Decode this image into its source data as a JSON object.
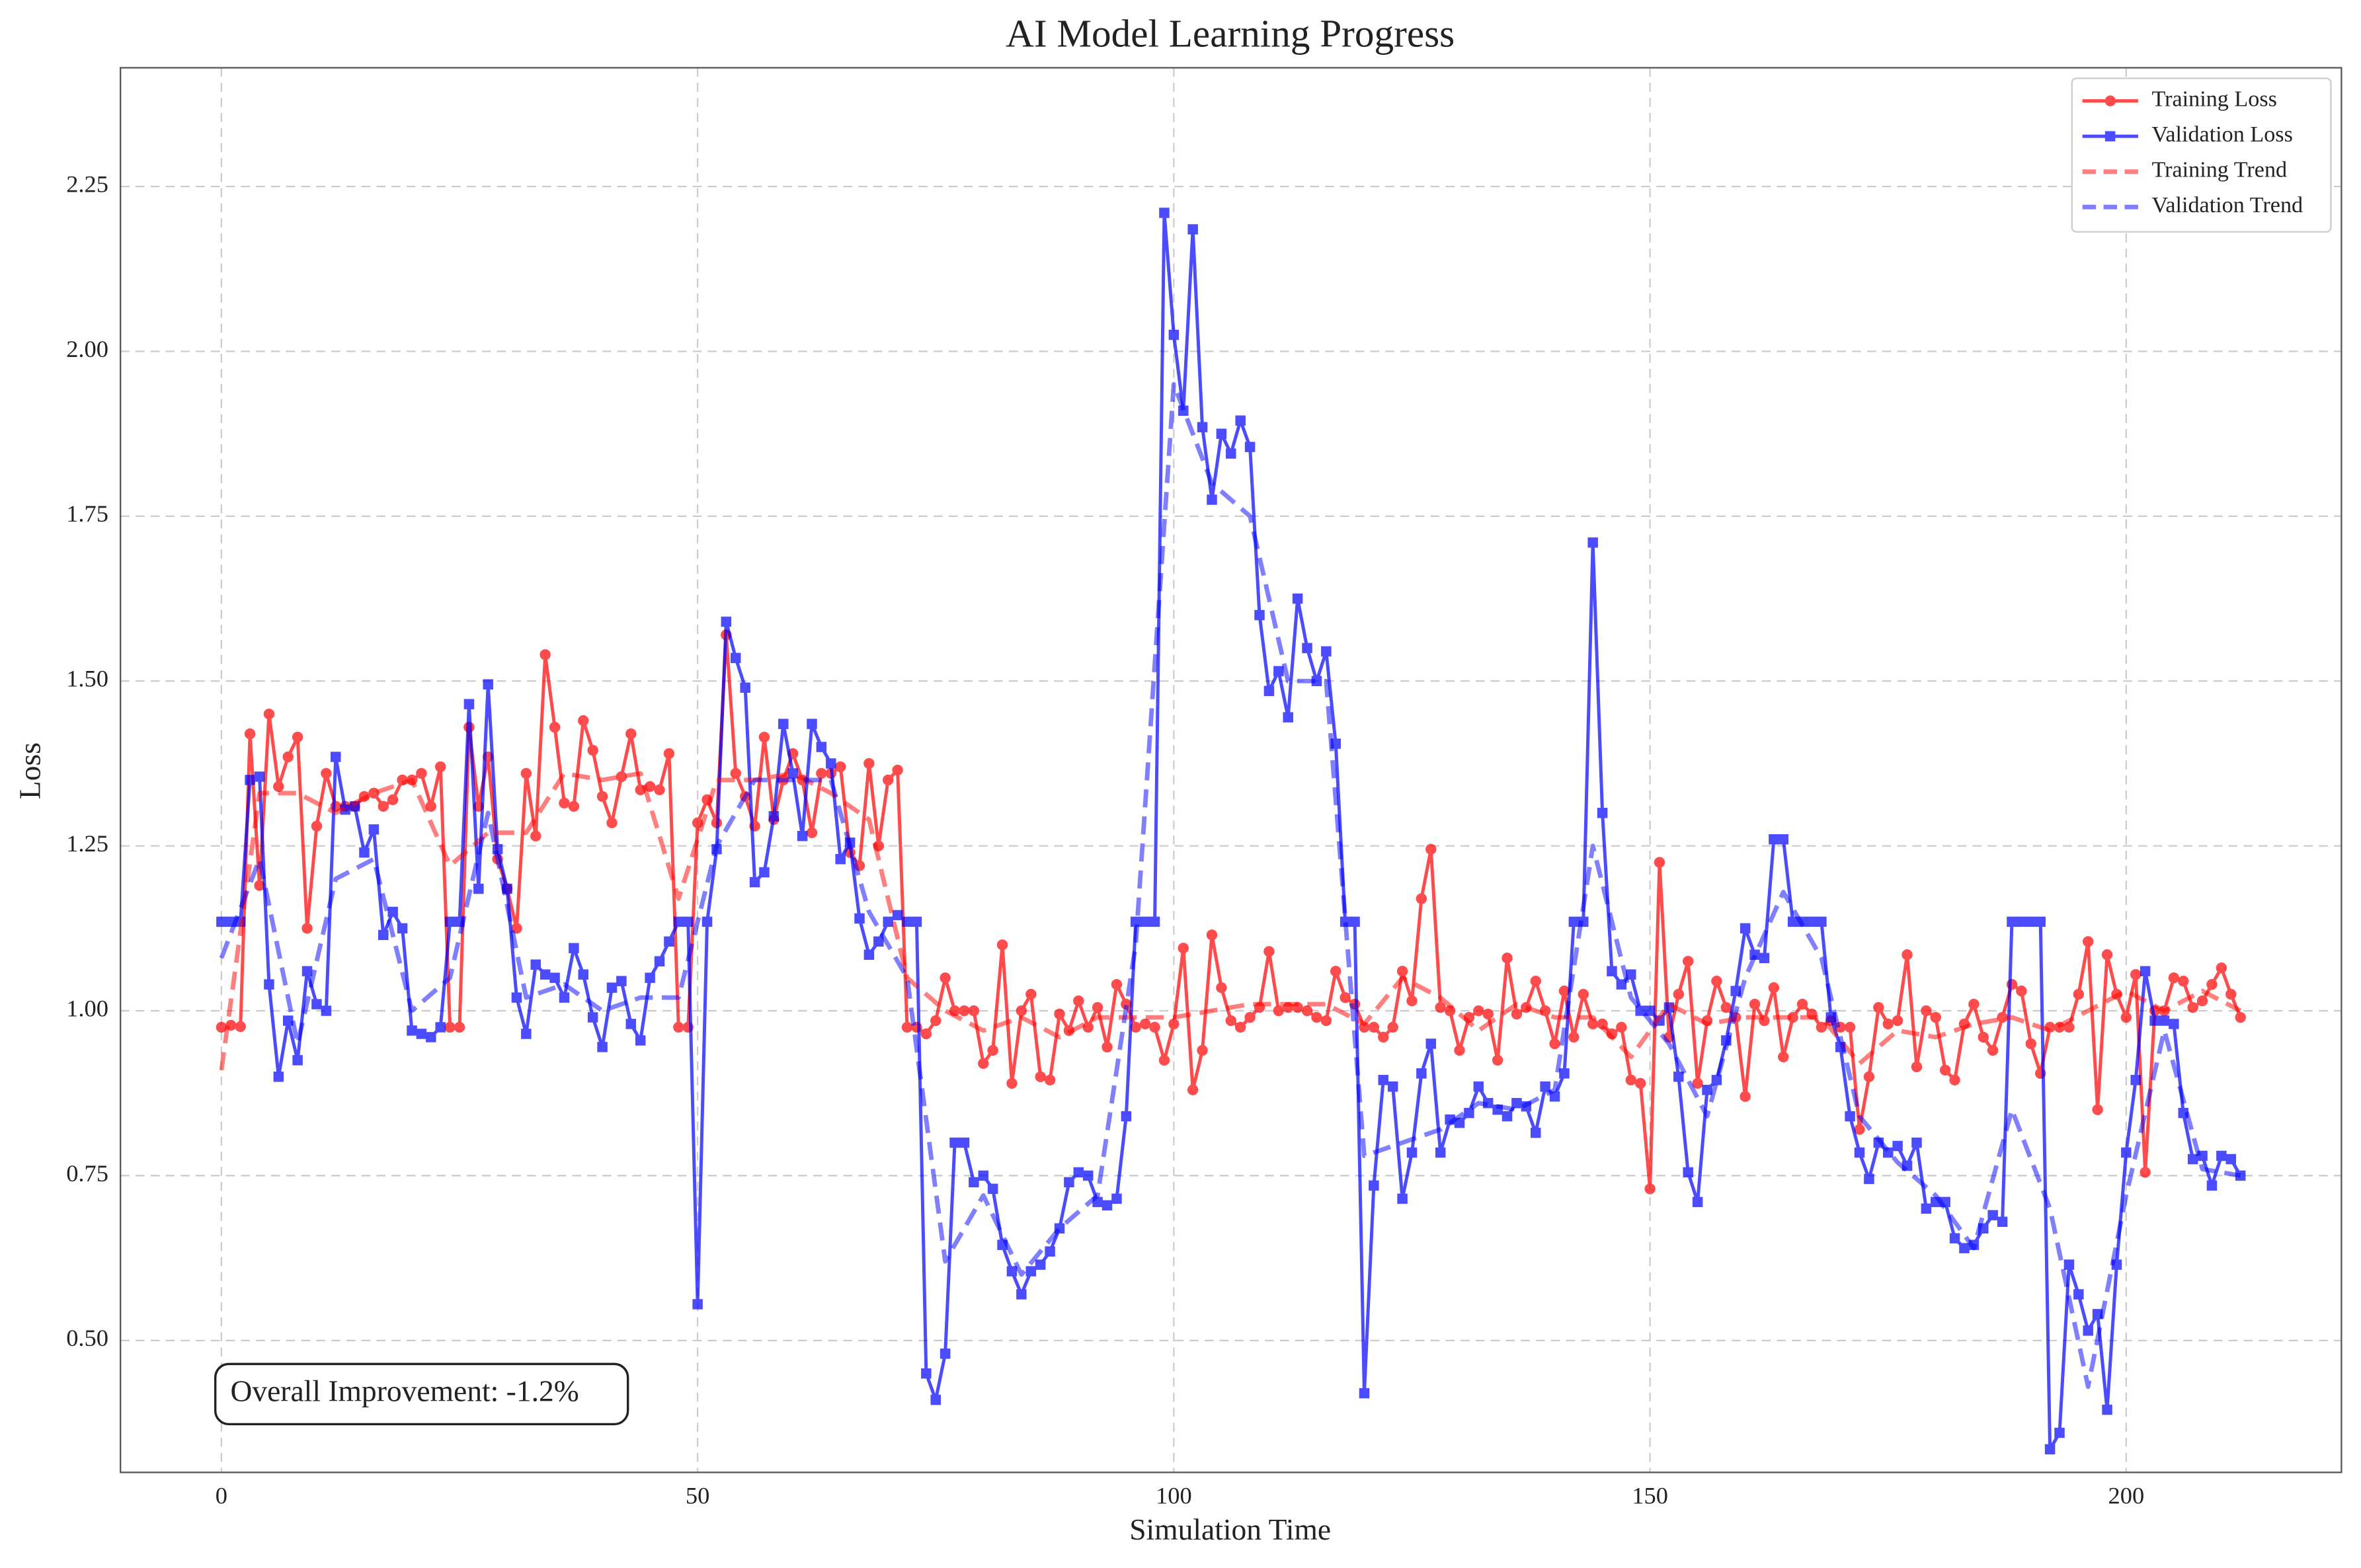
{
  "chart_data": {
    "type": "line",
    "title": "AI Model Learning Progress",
    "xlabel": "Simulation Time",
    "ylabel": "Loss",
    "annotation": "Overall Improvement: -1.2%",
    "xlim": [
      -10.6,
      222.6
    ],
    "ylim": [
      0.3,
      2.43
    ],
    "xticks": [
      0,
      50,
      100,
      150,
      200
    ],
    "yticks": [
      {
        "value": 0.5,
        "label": "0.50"
      },
      0.75,
      {
        "value": 1.0,
        "label": "1.00"
      },
      1.25,
      {
        "value": 1.5,
        "label": "1.50"
      },
      1.75,
      {
        "value": 2.0,
        "label": "2.00"
      },
      2.25
    ],
    "grid": true,
    "legend": "upper right",
    "x": [
      0,
      1,
      2,
      3,
      4,
      5,
      6,
      7,
      8,
      9,
      10,
      11,
      12,
      13,
      14,
      15,
      16,
      17,
      18,
      19,
      20,
      21,
      22,
      23,
      24,
      25,
      26,
      27,
      28,
      29,
      30,
      31,
      32,
      33,
      34,
      35,
      36,
      37,
      38,
      39,
      40,
      41,
      42,
      43,
      44,
      45,
      46,
      47,
      48,
      49,
      50,
      51,
      52,
      53,
      54,
      55,
      56,
      57,
      58,
      59,
      60,
      61,
      62,
      63,
      64,
      65,
      66,
      67,
      68,
      69,
      70,
      71,
      72,
      73,
      74,
      75,
      76,
      77,
      78,
      79,
      80,
      81,
      82,
      83,
      84,
      85,
      86,
      87,
      88,
      89,
      90,
      91,
      92,
      93,
      94,
      95,
      96,
      97,
      98,
      99,
      100,
      101,
      102,
      103,
      104,
      105,
      106,
      107,
      108,
      109,
      110,
      111,
      112,
      113,
      114,
      115,
      116,
      117,
      118,
      119,
      120,
      121,
      122,
      123,
      124,
      125,
      126,
      127,
      128,
      129,
      130,
      131,
      132,
      133,
      134,
      135,
      136,
      137,
      138,
      139,
      140,
      141,
      142,
      143,
      144,
      145,
      146,
      147,
      148,
      149,
      150,
      151,
      152,
      153,
      154,
      155,
      156,
      157,
      158,
      159,
      160,
      161,
      162,
      163,
      164,
      165,
      166,
      167,
      168,
      169,
      170,
      171,
      172,
      173,
      174,
      175,
      176,
      177,
      178,
      179,
      180,
      181,
      182,
      183,
      184,
      185,
      186,
      187,
      188,
      189,
      190,
      191,
      192,
      193,
      194,
      195,
      196,
      197,
      198,
      199,
      200,
      201,
      202,
      203,
      204,
      205,
      206,
      207,
      208,
      209,
      210,
      211,
      212
    ],
    "series": [
      {
        "name": "Training Loss",
        "color": "#ff0000",
        "marker": "circle",
        "linestyle": "solid",
        "opacity": 0.7,
        "values": [
          0.975,
          0.978,
          0.976,
          1.42,
          1.19,
          1.45,
          1.34,
          1.385,
          1.415,
          1.125,
          1.28,
          1.36,
          1.31,
          1.31,
          1.31,
          1.325,
          1.33,
          1.31,
          1.32,
          1.35,
          1.35,
          1.36,
          1.31,
          1.37,
          0.975,
          0.975,
          1.43,
          1.31,
          1.385,
          1.23,
          1.185,
          1.125,
          1.36,
          1.265,
          1.54,
          1.43,
          1.315,
          1.31,
          1.44,
          1.395,
          1.325,
          1.285,
          1.355,
          1.42,
          1.335,
          1.34,
          1.335,
          1.39,
          0.975,
          0.975,
          1.285,
          1.32,
          1.285,
          1.57,
          1.36,
          1.325,
          1.28,
          1.415,
          1.29,
          1.35,
          1.39,
          1.35,
          1.27,
          1.36,
          1.36,
          1.37,
          1.24,
          1.22,
          1.375,
          1.25,
          1.35,
          1.365,
          0.975,
          0.975,
          0.965,
          0.985,
          1.05,
          1.0,
          1.0,
          1.0,
          0.92,
          0.94,
          1.1,
          0.89,
          1.0,
          1.025,
          0.9,
          0.895,
          0.995,
          0.97,
          1.015,
          0.975,
          1.005,
          0.945,
          1.04,
          1.01,
          0.975,
          0.98,
          0.975,
          0.925,
          0.98,
          1.095,
          0.88,
          0.94,
          1.115,
          1.035,
          0.985,
          0.975,
          0.99,
          1.005,
          1.09,
          1.0,
          1.005,
          1.005,
          1.0,
          0.99,
          0.985,
          1.06,
          1.02,
          1.01,
          0.975,
          0.975,
          0.96,
          0.975,
          1.06,
          1.015,
          1.17,
          1.245,
          1.005,
          1.0,
          0.94,
          0.99,
          1.0,
          0.995,
          0.925,
          1.08,
          0.995,
          1.005,
          1.045,
          1.0,
          0.95,
          1.03,
          0.96,
          1.025,
          0.98,
          0.98,
          0.965,
          0.975,
          0.895,
          0.89,
          0.73,
          1.225,
          0.96,
          1.025,
          1.075,
          0.89,
          0.985,
          1.045,
          1.005,
          0.99,
          0.87,
          1.01,
          0.985,
          1.035,
          0.93,
          0.99,
          1.01,
          0.995,
          0.975,
          0.985,
          0.975,
          0.975,
          0.82,
          0.9,
          1.005,
          0.98,
          0.985,
          1.085,
          0.915,
          1.0,
          0.99,
          0.91,
          0.895,
          0.98,
          1.01,
          0.96,
          0.94,
          0.99,
          1.04,
          1.03,
          0.95,
          0.905,
          0.975,
          0.975,
          0.975,
          1.025,
          1.105,
          0.85,
          1.085,
          1.025,
          0.99,
          1.055,
          0.755,
          1.0,
          1.0,
          1.05,
          1.045,
          1.005,
          1.015,
          1.04,
          1.065,
          1.025,
          0.99
        ]
      },
      {
        "name": "Validation Loss",
        "color": "#0000ff",
        "marker": "square",
        "linestyle": "solid",
        "opacity": 0.7,
        "values": [
          1.135,
          1.135,
          1.135,
          1.35,
          1.355,
          1.04,
          0.9,
          0.985,
          0.925,
          1.06,
          1.01,
          1.0,
          1.385,
          1.305,
          1.31,
          1.24,
          1.275,
          1.115,
          1.15,
          1.125,
          0.97,
          0.965,
          0.96,
          0.975,
          1.135,
          1.135,
          1.465,
          1.185,
          1.495,
          1.245,
          1.185,
          1.02,
          0.965,
          1.07,
          1.055,
          1.05,
          1.02,
          1.095,
          1.055,
          0.99,
          0.945,
          1.035,
          1.045,
          0.98,
          0.955,
          1.05,
          1.075,
          1.105,
          1.135,
          1.135,
          0.555,
          1.135,
          1.245,
          1.59,
          1.535,
          1.49,
          1.195,
          1.21,
          1.295,
          1.435,
          1.36,
          1.265,
          1.435,
          1.4,
          1.375,
          1.23,
          1.255,
          1.14,
          1.085,
          1.105,
          1.135,
          1.145,
          1.135,
          1.135,
          0.45,
          0.41,
          0.48,
          0.8,
          0.8,
          0.74,
          0.75,
          0.73,
          0.645,
          0.605,
          0.57,
          0.605,
          0.615,
          0.635,
          0.67,
          0.74,
          0.755,
          0.75,
          0.71,
          0.705,
          0.715,
          0.84,
          1.135,
          1.135,
          1.135,
          2.21,
          2.025,
          1.91,
          2.185,
          1.885,
          1.775,
          1.875,
          1.845,
          1.895,
          1.855,
          1.6,
          1.485,
          1.515,
          1.445,
          1.625,
          1.55,
          1.5,
          1.545,
          1.405,
          1.135,
          1.135,
          0.42,
          0.735,
          0.895,
          0.885,
          0.715,
          0.785,
          0.905,
          0.95,
          0.785,
          0.835,
          0.83,
          0.845,
          0.885,
          0.86,
          0.85,
          0.84,
          0.86,
          0.855,
          0.815,
          0.885,
          0.87,
          0.905,
          1.135,
          1.135,
          1.71,
          1.3,
          1.06,
          1.04,
          1.055,
          1.0,
          1.0,
          0.985,
          1.005,
          0.9,
          0.755,
          0.71,
          0.88,
          0.895,
          0.955,
          1.03,
          1.125,
          1.085,
          1.08,
          1.26,
          1.26,
          1.135,
          1.135,
          1.135,
          1.135,
          0.99,
          0.945,
          0.84,
          0.785,
          0.745,
          0.8,
          0.785,
          0.795,
          0.765,
          0.8,
          0.7,
          0.71,
          0.71,
          0.655,
          0.64,
          0.645,
          0.67,
          0.69,
          0.68,
          1.135,
          1.135,
          1.135,
          1.135,
          0.335,
          0.36,
          0.615,
          0.57,
          0.515,
          0.54,
          0.395,
          0.615,
          0.785,
          0.895,
          1.06,
          0.985,
          0.985,
          0.98,
          0.845,
          0.775,
          0.78,
          0.735,
          0.78,
          0.775,
          0.75
        ]
      },
      {
        "name": "Training Trend",
        "color": "#ff0000",
        "marker": "none",
        "linestyle": "dashed",
        "opacity": 0.5,
        "x": [
          0,
          4,
          8,
          12,
          16,
          20,
          24,
          28,
          32,
          36,
          40,
          44,
          48,
          52,
          56,
          60,
          64,
          68,
          72,
          76,
          80,
          84,
          88,
          92,
          96,
          100,
          104,
          108,
          112,
          116,
          120,
          124,
          128,
          132,
          136,
          140,
          144,
          148,
          152,
          156,
          160,
          164,
          168,
          172,
          176,
          180,
          184,
          188,
          192,
          196,
          200,
          204,
          208,
          212
        ],
        "values": [
          0.91,
          1.33,
          1.33,
          1.3,
          1.33,
          1.35,
          1.22,
          1.27,
          1.27,
          1.36,
          1.35,
          1.36,
          1.17,
          1.35,
          1.35,
          1.36,
          1.33,
          1.29,
          1.05,
          1.0,
          0.97,
          0.99,
          0.96,
          0.99,
          0.99,
          0.99,
          1.0,
          1.01,
          1.01,
          1.01,
          0.98,
          1.05,
          1.02,
          0.97,
          1.01,
          0.99,
          0.99,
          0.93,
          1.01,
          0.98,
          0.99,
          0.99,
          0.99,
          0.92,
          0.97,
          0.96,
          0.98,
          0.99,
          0.97,
          1.0,
          1.03,
          1.0,
          1.03,
          1.0
        ]
      },
      {
        "name": "Validation Trend",
        "color": "#0000ff",
        "marker": "none",
        "linestyle": "dashed",
        "opacity": 0.5,
        "x": [
          0,
          4,
          8,
          12,
          16,
          20,
          24,
          28,
          32,
          36,
          40,
          44,
          48,
          52,
          56,
          60,
          64,
          68,
          72,
          76,
          80,
          84,
          88,
          92,
          96,
          100,
          104,
          108,
          112,
          116,
          120,
          124,
          128,
          132,
          136,
          140,
          144,
          148,
          152,
          156,
          160,
          164,
          168,
          172,
          176,
          180,
          184,
          188,
          192,
          196,
          200,
          204,
          208,
          212
        ],
        "values": [
          1.08,
          1.23,
          0.95,
          1.2,
          1.23,
          1.0,
          1.05,
          1.3,
          1.02,
          1.04,
          1.0,
          1.02,
          1.02,
          1.25,
          1.35,
          1.35,
          1.35,
          1.15,
          1.05,
          0.62,
          0.72,
          0.6,
          0.67,
          0.72,
          1.1,
          1.95,
          1.8,
          1.75,
          1.5,
          1.5,
          0.78,
          0.8,
          0.82,
          0.86,
          0.85,
          0.88,
          1.25,
          1.02,
          0.95,
          0.84,
          1.05,
          1.18,
          1.08,
          0.84,
          0.77,
          0.72,
          0.64,
          0.85,
          0.7,
          0.43,
          0.72,
          0.97,
          0.76,
          0.75
        ]
      }
    ]
  }
}
